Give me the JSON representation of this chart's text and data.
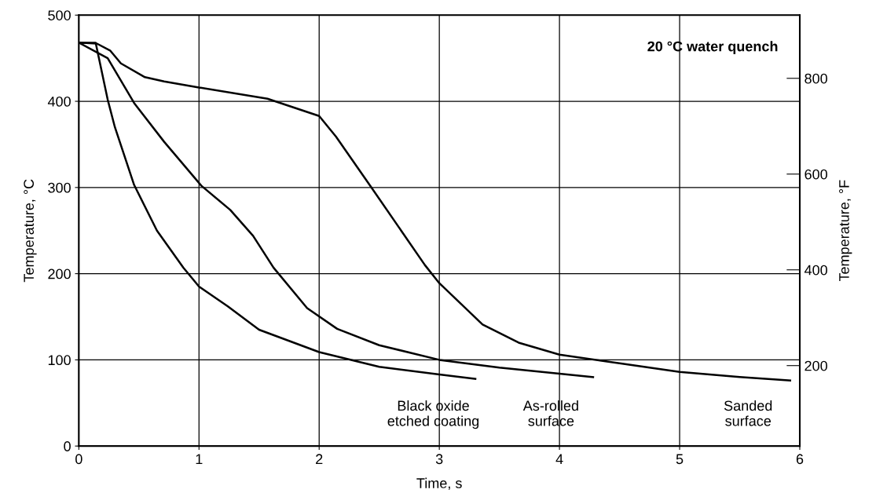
{
  "chart_data": {
    "type": "line",
    "xlabel": "Time, s",
    "ylabel": "Temperature, °C",
    "y2label": "Temperature, °F",
    "xlim": [
      0,
      6
    ],
    "xticks": [
      0,
      1,
      2,
      3,
      4,
      5,
      6
    ],
    "ylim": [
      0,
      500
    ],
    "yticks": [
      0,
      100,
      200,
      300,
      400,
      500
    ],
    "y2lim": [
      32,
      932
    ],
    "y2ticks": [
      200,
      400,
      600,
      800
    ],
    "grid": true,
    "legend": false,
    "annotations": [
      "20 °C water quench"
    ],
    "series": [
      {
        "name": "Black oxide\netched coating",
        "color": "#000000",
        "x": [
          0,
          0.14,
          0.24,
          0.3,
          0.46,
          0.65,
          0.87,
          1.0,
          1.24,
          1.5,
          2.0,
          2.5,
          3.0,
          3.3
        ],
        "values": [
          468,
          468,
          402,
          370,
          303,
          250,
          207,
          185,
          162,
          135,
          109,
          92,
          83,
          78
        ]
      },
      {
        "name": "As-rolled\nsurface",
        "color": "#000000",
        "x": [
          0,
          0.24,
          0.46,
          0.71,
          1.02,
          1.26,
          1.45,
          1.62,
          1.9,
          2.15,
          2.5,
          3.0,
          3.5,
          4.0,
          4.28
        ],
        "values": [
          468,
          450,
          398,
          353,
          302,
          274,
          244,
          207,
          160,
          136,
          117,
          100,
          91,
          84,
          80
        ]
      },
      {
        "name": "Sanded\nsurface",
        "color": "#000000",
        "x": [
          0,
          0.15,
          0.26,
          0.35,
          0.55,
          0.71,
          1.0,
          1.57,
          2.0,
          2.14,
          2.43,
          2.88,
          3.0,
          3.36,
          3.66,
          4.0,
          4.5,
          5.0,
          5.5,
          5.92
        ],
        "values": [
          468,
          467,
          459,
          444,
          428,
          423,
          416,
          403,
          383,
          359,
          301,
          210,
          189,
          141,
          120,
          106,
          96,
          86,
          80,
          76
        ]
      }
    ]
  }
}
